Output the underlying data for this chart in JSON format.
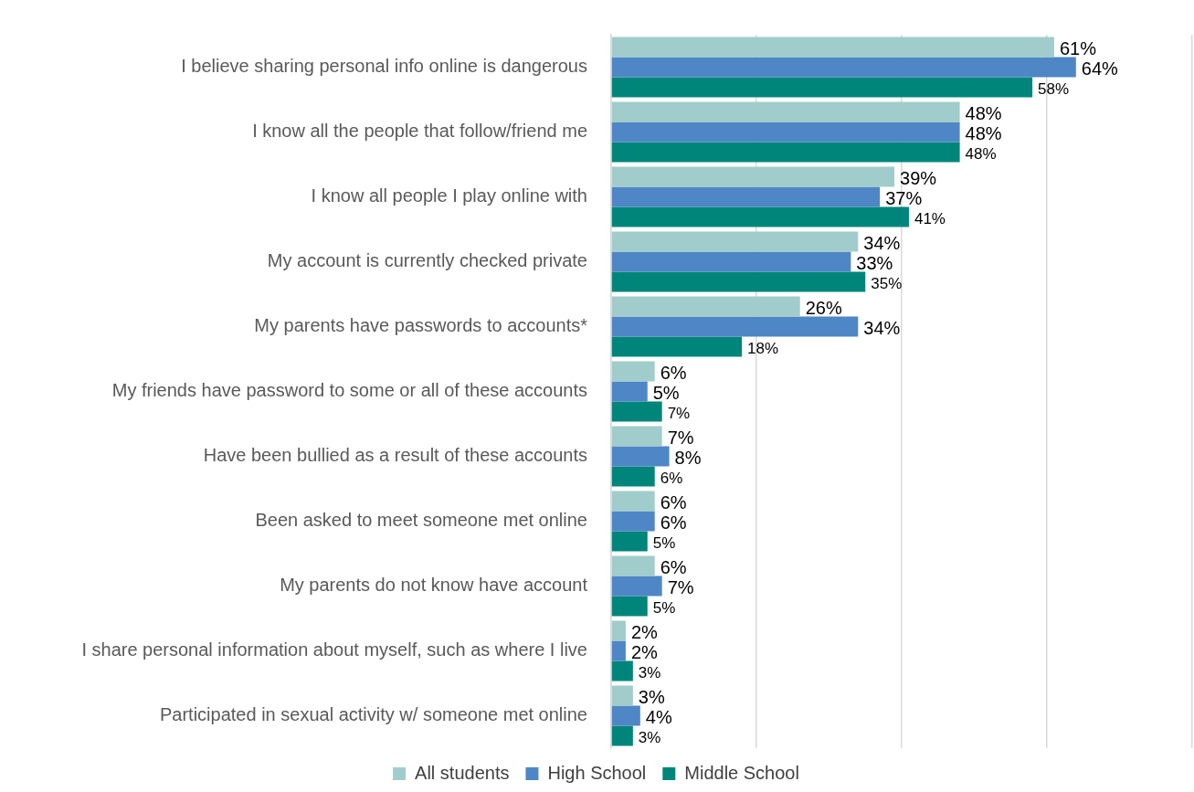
{
  "chart_data": {
    "type": "bar",
    "orientation": "horizontal",
    "categories": [
      "I believe sharing personal info online is dangerous",
      "I know all the people that follow/friend me",
      "I know all people I play online with",
      "My account is currently checked private",
      "My parents have passwords to accounts*",
      "My friends have password to some or all of these accounts",
      "Have been bullied as a result of these accounts",
      "Been asked to meet someone met online",
      "My parents do not know have account",
      "I share personal information about myself, such as where I live",
      "Participated in sexual activity w/ someone met online"
    ],
    "series": [
      {
        "name": "All students",
        "color": "#a0cdcb",
        "values": [
          61,
          48,
          39,
          34,
          26,
          6,
          7,
          6,
          6,
          2,
          3
        ],
        "value_labels": [
          "61%",
          "48%",
          "39%",
          "34%",
          "26%",
          "6%",
          "7%",
          "6%",
          "6%",
          "2%",
          "3%"
        ]
      },
      {
        "name": "High School",
        "color": "#4f86c6",
        "values": [
          64,
          48,
          37,
          33,
          34,
          5,
          8,
          6,
          7,
          2,
          4
        ],
        "value_labels": [
          "64%",
          "48%",
          "37%",
          "33%",
          "34%",
          "5%",
          "8%",
          "6%",
          "7%",
          "2%",
          "4%"
        ]
      },
      {
        "name": "Middle School",
        "color": "#00857a",
        "values": [
          58,
          48,
          41,
          35,
          18,
          7,
          6,
          5,
          5,
          3,
          3
        ],
        "value_labels": [
          "58%",
          "48%",
          "41%",
          "35%",
          "18%",
          "7%",
          "6%",
          "5%",
          "5%",
          "3%",
          "3%"
        ]
      }
    ],
    "xlim": [
      0,
      80
    ],
    "xticks": [
      {
        "value": 0,
        "label": null
      },
      {
        "value": 20,
        "label": null
      },
      {
        "value": 40,
        "label": null
      },
      {
        "value": 60,
        "label": null
      },
      {
        "value": 80,
        "label": null
      }
    ],
    "tick_labels": "y",
    "grid": "x",
    "legend": "bottom"
  }
}
